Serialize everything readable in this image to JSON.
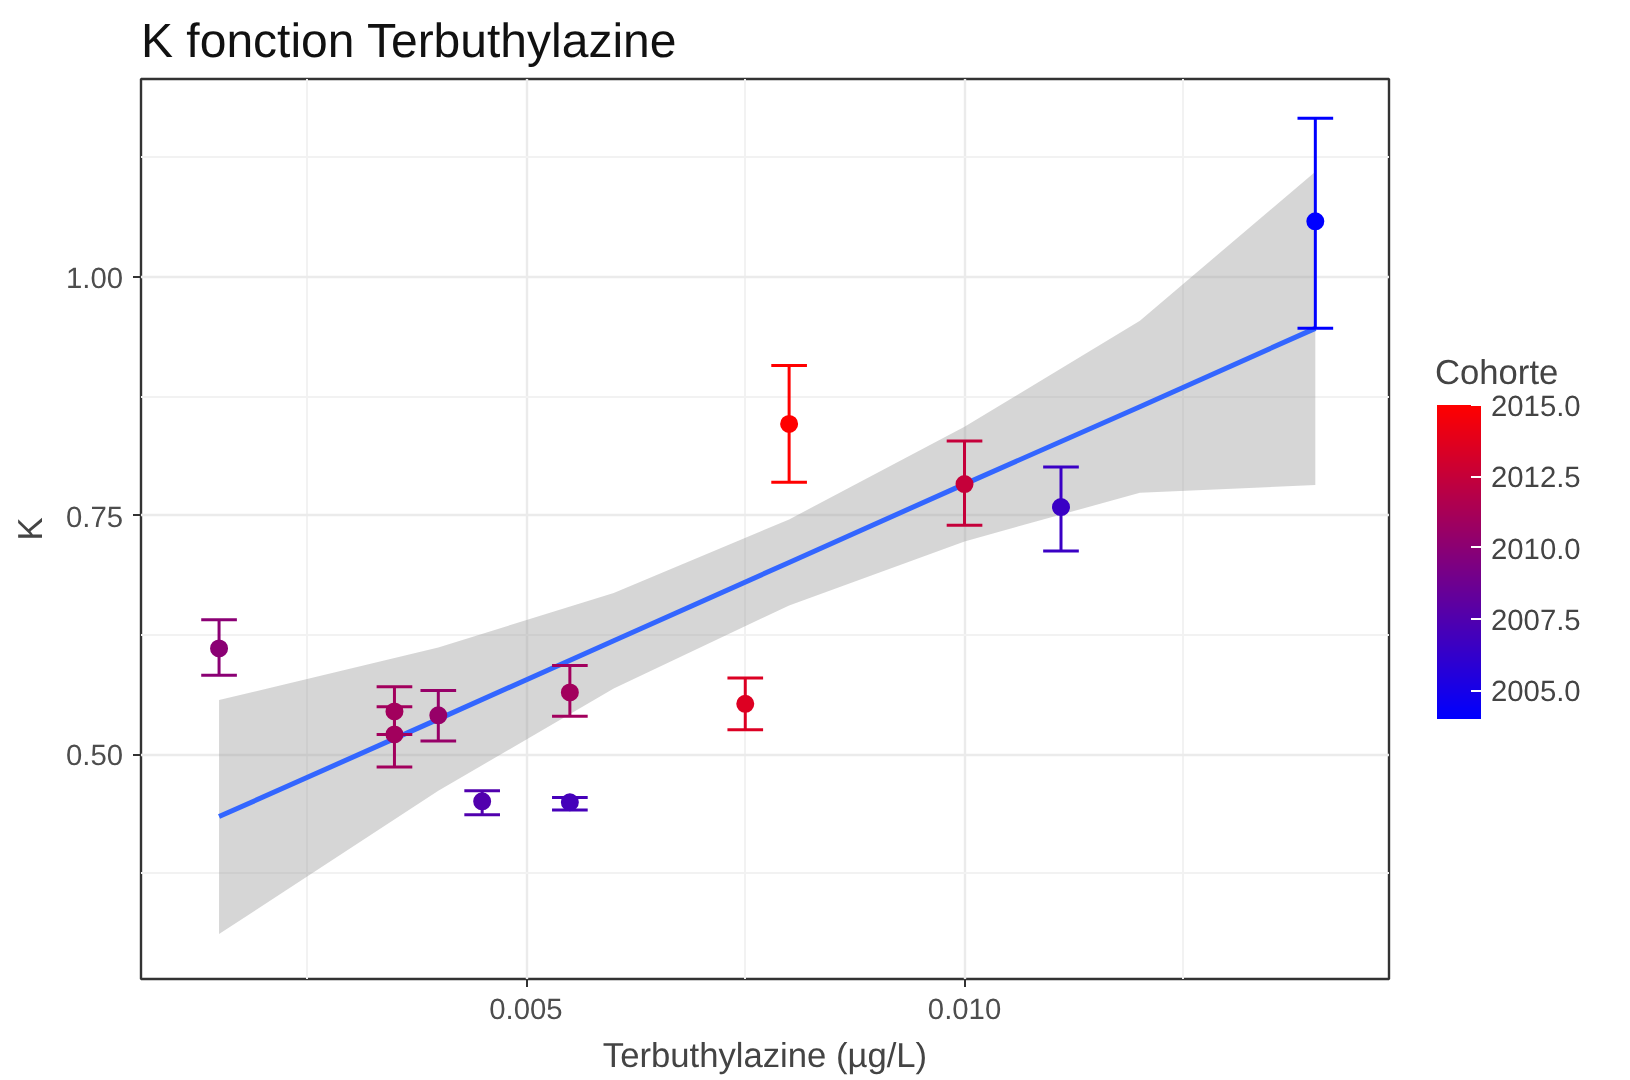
{
  "chart_data": {
    "type": "scatter",
    "title": "K fonction Terbuthylazine",
    "xlabel": "Terbuthylazine (µg/L)",
    "ylabel": "K",
    "clabel": "Cohorte",
    "xlim": [
      0.00061,
      0.01484
    ],
    "ylim": [
      0.265,
      1.207
    ],
    "xticks": [
      {
        "value": 0.0025,
        "label": null
      },
      {
        "value": 0.005,
        "label": "0.005"
      },
      {
        "value": 0.0075,
        "label": null
      },
      {
        "value": 0.01,
        "label": "0.010"
      },
      {
        "value": 0.0125,
        "label": null
      }
    ],
    "yticks": [
      {
        "value": 0.375,
        "label": null
      },
      {
        "value": 0.5,
        "label": "0.50"
      },
      {
        "value": 0.625,
        "label": null
      },
      {
        "value": 0.75,
        "label": "0.75"
      },
      {
        "value": 0.875,
        "label": null
      },
      {
        "value": 1.0,
        "label": "1.00"
      },
      {
        "value": 1.125,
        "label": null
      }
    ],
    "clim": [
      2004,
      2015
    ],
    "cticks": [
      {
        "value": 2005,
        "label": "2005.0"
      },
      {
        "value": 2007.5,
        "label": "2007.5"
      },
      {
        "value": 2010,
        "label": "2010.0"
      },
      {
        "value": 2012.5,
        "label": "2012.5"
      },
      {
        "value": 2015,
        "label": "2015.0"
      }
    ],
    "grid": true,
    "series": [
      {
        "type": "line",
        "color": "#3366ff",
        "x": [
          0.0015,
          0.004,
          0.006,
          0.008,
          0.01,
          0.012,
          0.014
        ],
        "values": [
          0.435,
          0.537,
          0.619,
          0.701,
          0.783,
          0.864,
          0.946
        ],
        "lower": [
          0.312,
          0.462,
          0.569,
          0.656,
          0.723,
          0.774,
          0.782
        ],
        "upper": [
          0.557,
          0.612,
          0.669,
          0.746,
          0.843,
          0.954,
          1.11
        ]
      },
      {
        "marker": "circle",
        "colors": [
          "#8b0074",
          "#a2005d",
          "#a2005d",
          "#970068",
          "#5100ae",
          "#4600b9",
          "#a2005d",
          "#dc0023",
          "#ff0000",
          "#c5003a",
          "#3a00c5",
          "#0000ff"
        ],
        "x": [
          0.0015,
          0.0035,
          0.0035,
          0.004,
          0.0045,
          0.0055,
          0.0055,
          0.0075,
          0.008,
          0.01,
          0.0111,
          0.014
        ],
        "values": [
          0.611,
          0.545,
          0.521,
          0.541,
          0.451,
          0.45,
          0.565,
          0.553,
          0.846,
          0.783,
          0.759,
          1.058
        ],
        "errors": [
          [
            0.583,
            0.641
          ],
          [
            0.521,
            0.571
          ],
          [
            0.487,
            0.55
          ],
          [
            0.514,
            0.567
          ],
          [
            0.437,
            0.462
          ],
          [
            0.442,
            0.455
          ],
          [
            0.54,
            0.593
          ],
          [
            0.526,
            0.58
          ],
          [
            0.785,
            0.907
          ],
          [
            0.74,
            0.828
          ],
          [
            0.713,
            0.801
          ],
          [
            0.946,
            1.166
          ]
        ],
        "cvalues": [
          2010,
          2011,
          2011,
          2010.5,
          2007.5,
          2007,
          2011,
          2013.5,
          2015,
          2012.5,
          2006.5,
          2004
        ]
      }
    ]
  }
}
